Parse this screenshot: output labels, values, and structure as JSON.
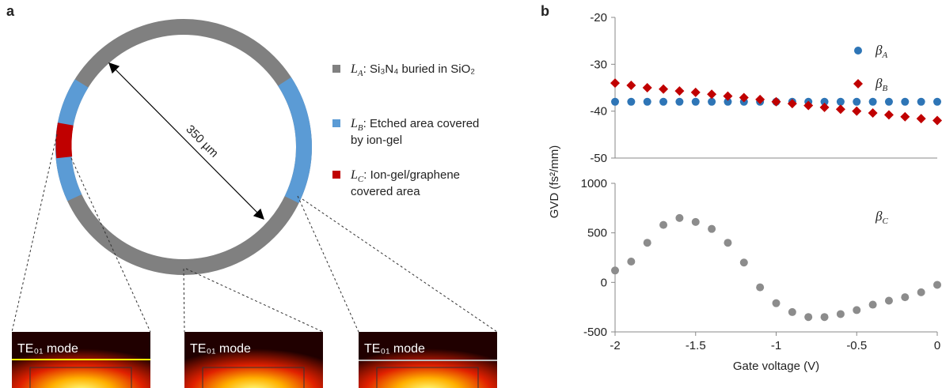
{
  "panel_labels": [
    "a",
    "b"
  ],
  "diagram": {
    "diameter": "350 µm",
    "legend": [
      {
        "symbol": "L",
        "sub": "A",
        "lines": [
          ": Si₃N₄ buried in SiO₂"
        ],
        "color": "#808080"
      },
      {
        "symbol": "L",
        "sub": "B",
        "lines": [
          ": Etched area covered",
          "by ion-gel"
        ],
        "color": "#5b9bd5"
      },
      {
        "symbol": "L",
        "sub": "C",
        "lines": [
          ": Ion-gel/graphene",
          "covered area"
        ],
        "color": "#c00000"
      }
    ],
    "modes": [
      "TE₀₁ mode",
      "TE₀₁ mode",
      "TE₀₁ mode"
    ]
  },
  "y_label": "GVD (fs²/mm)",
  "chart_data": [
    {
      "type": "scatter",
      "xlim": [
        -2,
        0
      ],
      "ylim": [
        -50,
        -20
      ],
      "yticks": [
        -50,
        -40,
        -30,
        -20
      ],
      "legend": "upper right",
      "legend_markers": true,
      "x": [
        -2,
        -1.9,
        -1.8,
        -1.7,
        -1.6,
        -1.5,
        -1.4,
        -1.3,
        -1.2,
        -1.1,
        -1,
        -0.9,
        -0.8,
        -0.7,
        -0.6,
        -0.5,
        -0.4,
        -0.3,
        -0.2,
        -0.1,
        0
      ],
      "series": [
        {
          "name": "β",
          "name_sub": "A",
          "color": "#2e75b6",
          "marker": "circle",
          "values": [
            -38,
            -38,
            -38,
            -38,
            -38,
            -38,
            -38,
            -38,
            -38,
            -38,
            -38,
            -38,
            -38,
            -38,
            -38,
            -38,
            -38,
            -38,
            -38,
            -38,
            -38
          ]
        },
        {
          "name": "β",
          "name_sub": "B",
          "color": "#c00000",
          "marker": "diamond",
          "values": [
            -34,
            -34.5,
            -35,
            -35.3,
            -35.7,
            -36,
            -36.4,
            -36.8,
            -37.1,
            -37.5,
            -38,
            -38.4,
            -38.8,
            -39.2,
            -39.6,
            -40,
            -40.4,
            -40.8,
            -41.2,
            -41.6,
            -42
          ]
        }
      ]
    },
    {
      "type": "scatter",
      "xlim": [
        -2,
        0
      ],
      "ylim": [
        -500,
        1000
      ],
      "yticks": [
        -500,
        0,
        500,
        1000
      ],
      "xticks": [
        -2,
        -1.5,
        -1,
        -0.5,
        0
      ],
      "xlabel": "Gate voltage (V)",
      "legend": "upper right",
      "legend_markers": false,
      "x": [
        -2,
        -1.9,
        -1.8,
        -1.7,
        -1.6,
        -1.5,
        -1.4,
        -1.3,
        -1.2,
        -1.1,
        -1,
        -0.9,
        -0.8,
        -0.7,
        -0.6,
        -0.5,
        -0.4,
        -0.3,
        -0.2,
        -0.1,
        0
      ],
      "series": [
        {
          "name": "β",
          "name_sub": "C",
          "color": "#8c8c8c",
          "marker": "circle",
          "values": [
            120,
            210,
            400,
            580,
            650,
            610,
            540,
            400,
            200,
            -50,
            -210,
            -300,
            -350,
            -350,
            -320,
            -280,
            -225,
            -185,
            -150,
            -100,
            -25
          ]
        }
      ]
    }
  ]
}
